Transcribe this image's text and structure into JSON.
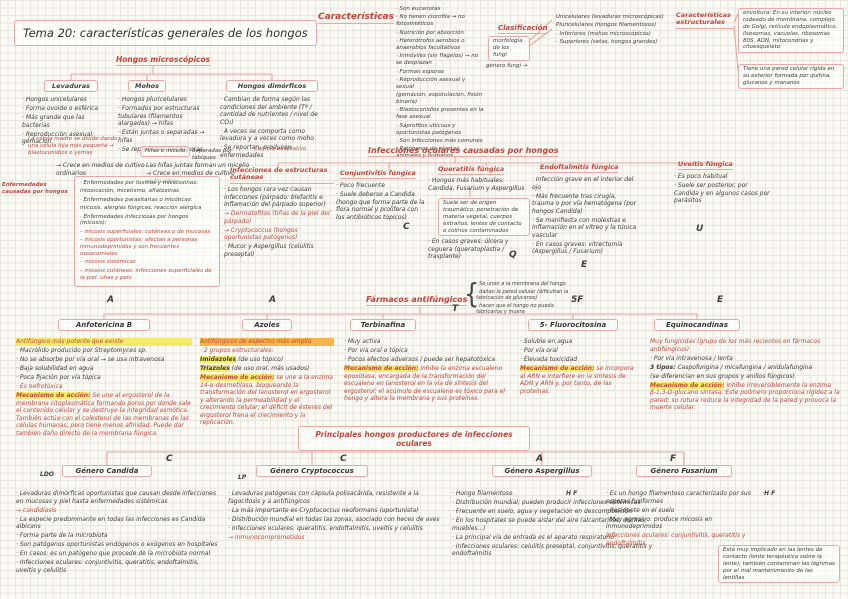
{
  "palette": {
    "paper": "#fbfaf4",
    "grid": "#e8e6dc",
    "ink": "#403e38",
    "red": "#c2473e",
    "pink": "#eaa9a6",
    "hly": "#f7ec6a",
    "hlo": "#f5b54a"
  },
  "title": "Tema 20: características generales de los hongos",
  "caracteristicas": {
    "heading": "Características",
    "items": [
      "· Son eucariotas",
      "· No tienen clorofila → no fotosintéticos",
      "· Nutrición por absorción",
      "· Heterótrofos aerobios o anaerobios facultativos",
      "· Inmóviles (sin flagelos) → no se desplazan",
      "· Forman esporas",
      "· Reproducción asexual y sexual",
      "   (gemación, esporulación, fisión binaria)",
      "· Blastoconidios presentes en la fase asexual",
      "· Saprofitos ubicuos y oportunistas patógenos",
      "· Son infecciones más comunes",
      "· Patógenos de plantas, animales y humanos"
    ]
  },
  "clasificacion": {
    "heading": "Clasificación",
    "box": "morfología de los fungi",
    "arrow_label": "género fungi →",
    "items": [
      "Unicelulares (levaduras microscópicas)",
      "Pluricelulares (hongos filamentosos)",
      "· Inferiores (mohos microscópicos)",
      "· Superiores (setas, hongos grandes)"
    ]
  },
  "estructurales": {
    "heading": "Características estructurales",
    "box1": "envoltura: En su interior: núcleo rodeado de membrana, complejo de Golgi, retículo endoplasmático, lisosomas, vacuolas, ribosomas 80S, ADN, mitocondrias y citoesqueleto",
    "box2": "Tiene una pared celular rígida en su exterior formada por quitina, glucanos y mananos"
  },
  "hongos_micro": {
    "heading": "Hongos microscópicos",
    "levaduras": {
      "label": "Levaduras",
      "items": [
        "· Hongos unicelulares",
        "· Forma ovoide o esférica",
        "· Más grande que las bacterias",
        "· Reproducción asexual: gemación"
      ],
      "note": "La célula madre se divide dando una célula hija más pequeña → blastoconidios o yemas",
      "crece": "→ Crece en medios de cultivo ordinarios"
    },
    "mohos": {
      "label": "Mohos",
      "items": [
        "· Hongos pluricelulares",
        "· Formados por estructuras tubulares (filamentos alargados) → hifas",
        "· Están juntas o separadas → hifas",
        "· Se reproducen por esporas"
      ],
      "hifas_box": "Hifas o micelio",
      "hifas_note": "Separadas por tabiques",
      "linea": "Las hifas juntas forman un micelio",
      "crece": "→ Crece en medios de cultivo ordinarios"
    },
    "dimorficos": {
      "label": "Hongos dimórficos",
      "items": [
        "· Cambian de forma según las condiciones del ambiente (Tª / cantidad de nutrientes / nivel de CO₂)",
        "· A veces se comporta como levadura y a veces como moho",
        "· Se reportan: producen enfermedades"
      ],
      "note": "Cambio adaptativo"
    }
  },
  "enfermedades": {
    "side_label": "Enfermedades causadas por hongos",
    "items": [
      {
        "t": "· Enfermedades por toxinas y micotoxinas:"
      },
      {
        "t": "   intoxicación, micetismo, aflatoxinas"
      },
      {
        "t": "· Enfermedades parasitarias o micóticas:"
      },
      {
        "t": "   micosis, alergias fúngicas, reacción alérgica"
      },
      {
        "t": "· Enfermedades infecciosas por hongos (micosis):"
      },
      {
        "t": "– micosis superficiales: cutáneas o de mucosas",
        "c": "red"
      },
      {
        "t": "– micosis oportunistas: afectan a personas inmunodeprimidas y son frecuentes nosocomiales",
        "c": "red"
      },
      {
        "t": "– micosis sistémicas",
        "c": "red"
      },
      {
        "t": "– micosis cutáneas: infecciones superficiales de la piel, uñas y pelo",
        "c": "red"
      }
    ]
  },
  "infecciones": {
    "heading": "Infecciones oculares causadas por hongos",
    "cutaneas": {
      "heading": "Infecciones de estructuras cutáneas",
      "items": [
        "· Los hongos rara vez causan infecciones (párpado: blefaritis e inflamación del párpado superior)",
        {
          "t": "→ Dermatofitos (tiñas de la piel del párpado)",
          "c": "red"
        },
        {
          "t": "→ Cryptococcus (hongos oportunistas patógenos)",
          "c": "red"
        },
        "· Mucor y Aspergillus (celulitis preseptal)"
      ]
    },
    "conjuntivitis": {
      "heading": "Conjuntivitis fúngica",
      "items": [
        "· Poco frecuente",
        "· Suele deberse a Candida (hongo que forma parte de la flora normal y prolifera con los antibióticos tópicos)"
      ]
    },
    "queratitis": {
      "heading": "Queratitis fúngica",
      "lead_item": "· Hongos más habituales: Candida, Fusarium y Aspergillus",
      "note": "Suele ser de origen traumático: penetración de materia vegetal, cuerpos extraños, lentes de contacto o colirios contaminados",
      "last_item": "· En casos graves: úlcera y ceguera (queratoplastia / trasplante)"
    },
    "endoftalmitis": {
      "heading": "Endoftalmitis fúngica",
      "items": [
        "· Infección grave en el interior del ojo",
        "· Más frecuente tras cirugía, trauma o por vía hematógena (por hongos Candida)",
        "· Se manifiesta con molestias e inflamación en el vítreo y la túnica vascular",
        "· En casos graves: vitrectomía (Aspergillus / Fusarium)"
      ]
    },
    "uveitis": {
      "heading": "Uveítis fúngica",
      "items": [
        "· Es poco habitual",
        "· Suele ser posterior, por Candida y en algunos casos por parásitos"
      ]
    }
  },
  "farmacos": {
    "heading": "Fármacos antifúngicos",
    "nota": [
      "· Se unen a la membrana del hongo",
      "· dañan la pared celular (dificultan la fabricación de glucanos)",
      "· hacen que el hongo no pueda fabricarlos y muera"
    ],
    "drugs": [
      {
        "name": "Anfotericina B",
        "items": [
          {
            "t": "Antifúngico más potente que existe",
            "c": "red",
            "hl": "yellow"
          },
          "· Macrólido producido por Streptomyces sp.",
          "· No se absorbe por vía oral → se usa intravenosa",
          "· Baja solubilidad en agua",
          "· Poca fijación por vía tópica",
          {
            "t": "· Es nefrotóxica",
            "c": "red"
          },
          {
            "lead": "Mecanismo de acción:",
            "hl": "yellow",
            "c": "red",
            "t": "Se une al ergosterol de la membrana citoplasmática formando poros por donde sale el contenido celular y se destruye la integridad osmótica. También actúa con el colesterol de las membranas de las células humanas, pero tiene menos afinidad. Puede dar también daño directo de la membrana fúngica."
          }
        ]
      },
      {
        "name": "Azoles",
        "items": [
          {
            "t": "Antifúngicos de espectro más amplio",
            "c": "red",
            "hl": "orange"
          },
          {
            "t": "· 2 grupos estructurales:",
            "c": "red"
          },
          {
            "lead": "Imidazoles",
            "t": "(de uso tópico)",
            "hl": "yellow"
          },
          {
            "lead": "Triazoles",
            "t": "(de uso oral, más usados)",
            "hl": "yellow"
          },
          {
            "lead": "Mecanismo de acción:",
            "hl": "yellow",
            "c": "red",
            "t": "se une a la enzima 14-α-desmetilasa, bloqueando la transformación del lanosterol en ergosterol y alterando la permeabilidad y el crecimiento celular; el déficit de ésteres del ergosterol frena el crecimiento y la replicación."
          }
        ]
      },
      {
        "name": "Terbinafina",
        "items": [
          "· Muy activa",
          "· Por vía oral o tópica",
          "· Pocos efectos adversos / puede ser hepatotóxica",
          {
            "lead": "Mecanismo de acción:",
            "hl": "yellow",
            "c": "red",
            "t": "inhibe la enzima escualeno epoxidasa, encargada de la transformación del escualeno en lanosterol en la vía de síntesis del ergosterol; el acúmulo de escualeno es tóxico para el hongo y altera la membrana y sus proteínas."
          }
        ]
      },
      {
        "name": "5- Fluorocitosina",
        "items": [
          "· Soluble en agua",
          "· Por vía oral",
          "· Elevada toxicidad",
          {
            "lead": "Mecanismo de acción:",
            "hl": "yellow",
            "c": "red",
            "t": "se incorpora al ARN e interfiere en la síntesis de ADN y ARN y, por tanto, de las proteínas."
          }
        ]
      },
      {
        "name": "Equinocandinas",
        "items": [
          {
            "t": "Muy fungicidas (grupo de los más recientes en fármacos antifúngicos)",
            "c": "red"
          },
          "· Por vía intravenosa / lenta",
          {
            "lead": "3 tipos:",
            "t": "Caspofungina / micafungina / anidulafungina"
          },
          "   (se diferencian en sus grupos y anillos fúngicos)",
          {
            "lead": "Mecanismo de acción:",
            "hl": "yellow",
            "c": "red",
            "t": "inhibe irreversiblemente la enzima β-1,3-D-glucano sintasa. Este polímero proporciona rigidez a la pared; su rotura reduce la integridad de la pared y provoca la muerte celular."
          }
        ]
      }
    ]
  },
  "productores": {
    "heading": "Principales hongos productores de infecciones oculares",
    "candida": {
      "tag": "LDO",
      "name": "Género Candida",
      "items": [
        "· Levaduras dimórficas oportunistas que causan desde infecciones en mucosas y piel hasta enfermedades sistémicas",
        {
          "t": "→ candidiasis",
          "c": "red"
        },
        "· La especie predominante en todas las infecciones es Candida albicans",
        "· Forma parte de la microbiota",
        "· Son patógenos oportunistas endógenos o exógenos en hospitales",
        "· En casos: es un patógeno que procede de la microbiota normal",
        "· Infecciones oculares: conjuntivitis, queratitis, endoftalmitis, uveítis y celulitis"
      ]
    },
    "cryptococcus": {
      "tag": "LP",
      "name": "Género Cryptococcus",
      "items": [
        "· Levaduras patógenas con cápsula polisacárida, resistente a la fagocitosis y a antifúngicos",
        "· La más importante es Cryptococcus neoformans (oportunista)",
        "· Distribución mundial en todas las zonas, asociado con heces de aves",
        "· Infecciones oculares: queratitis, endoftalmitis, uveítis y celulitis",
        {
          "t": "→ Inmunocomprometidos",
          "c": "red"
        }
      ]
    },
    "aspergillus": {
      "tag": "H F",
      "name": "Género Aspergillus",
      "items": [
        "· Hongo filamentoso",
        "· Distribución mundial; pueden producir infecciones sistémicas",
        "· Frecuente en suelo, agua y vegetación en descomposición",
        "· En los hospitales se puede aislar del aire (alcantarillas, duchas, muebles...)",
        "· La principal vía de entrada es el aparato respiratorio",
        "· Infecciones oculares: celulitis preseptal, conjuntivitis, queratitis y endoftalmitis"
      ]
    },
    "fusarium": {
      "tag": "H F",
      "name": "Género Fusarium",
      "items": [
        "· Es un hongo filamentoso caracterizado por sus esporas fusiformes",
        "· Residente en el suelo",
        "· Muy agresivo: produce micosis en inmunodeprimidos",
        {
          "t": "Infecciones oculares: conjuntivitis, queratitis y endoftalmitis",
          "c": "red"
        }
      ],
      "note": "Está muy implicado en las lentes de contacto (lente terapéutica sobre la lente); también contaminan las lágrimas por el mal mantenimiento de las lentillas"
    }
  },
  "letters": {
    "conjuntivitis": "C",
    "queratitis": "Q",
    "endoftalmitis": "E",
    "uveitis": "U",
    "anfotericina": "A",
    "azoles": "A",
    "terbinafina": "T",
    "fluorocitosina": "5F",
    "equinocandinas": "E",
    "candida": "C",
    "cryptococcus": "C",
    "aspergillus": "A",
    "fusarium": "F"
  }
}
